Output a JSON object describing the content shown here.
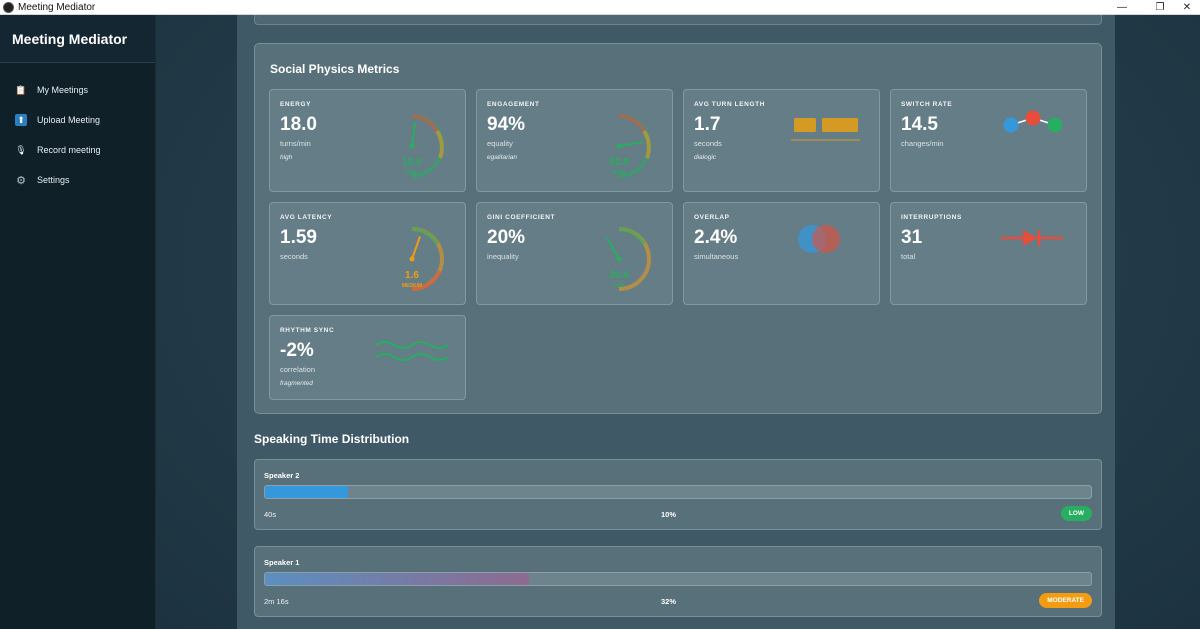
{
  "window": {
    "title": "Meeting Mediator",
    "controls": {
      "minimize": "—",
      "restore": "❐",
      "close": "✕"
    }
  },
  "sidebar": {
    "brand": "Meeting Mediator",
    "items": [
      {
        "label": "My Meetings",
        "icon": "clipboard-icon",
        "glyph": "📋"
      },
      {
        "label": "Upload Meeting",
        "icon": "upload-icon",
        "glyph": "⬆"
      },
      {
        "label": "Record meeting",
        "icon": "microphone-icon",
        "glyph": "🎙"
      },
      {
        "label": "Settings",
        "icon": "gear-icon",
        "glyph": "⚙"
      }
    ]
  },
  "metrics": {
    "title": "Social Physics Metrics",
    "energy": {
      "label": "ENERGY",
      "value": "18.0",
      "unit": "turns/min",
      "desc": "high",
      "gauge_value": "18.0",
      "gauge_level": "HIGH",
      "fraction": 0.45
    },
    "engagement": {
      "label": "ENGAGEMENT",
      "value": "94%",
      "unit": "equality",
      "desc": "egalitarian",
      "gauge_value": "93.9",
      "gauge_level": "HIGH",
      "fraction": 0.94
    },
    "avg_turn_length": {
      "label": "AVG TURN LENGTH",
      "value": "1.7",
      "unit": "seconds",
      "desc": "dialogic"
    },
    "switch_rate": {
      "label": "SWITCH RATE",
      "value": "14.5",
      "unit": "changes/min"
    },
    "avg_latency": {
      "label": "AVG LATENCY",
      "value": "1.59",
      "unit": "seconds",
      "gauge_value": "1.6",
      "gauge_level": "MEDIUM",
      "fraction": 0.53
    },
    "gini": {
      "label": "GINI COEFFICIENT",
      "value": "20%",
      "unit": "inequality",
      "gauge_value": "20.0",
      "gauge_level": "LOW",
      "fraction": 0.2
    },
    "overlap": {
      "label": "OVERLAP",
      "value": "2.4%",
      "unit": "simultaneous"
    },
    "interruptions": {
      "label": "INTERRUPTIONS",
      "value": "31",
      "unit": "total"
    },
    "rhythm_sync": {
      "label": "RHYTHM SYNC",
      "value": "-2%",
      "unit": "correlation",
      "desc": "fragmented"
    }
  },
  "speaking": {
    "title": "Speaking Time Distribution",
    "speakers": [
      {
        "name": "Speaker 2",
        "time": "40s",
        "percent_label": "10%",
        "fraction": 0.1,
        "badge": "LOW",
        "badge_color": "#27ae60"
      },
      {
        "name": "Speaker 1",
        "time": "2m 16s",
        "percent_label": "32%",
        "fraction": 0.32,
        "badge": "MODERATE",
        "badge_color": "#f39c12"
      }
    ]
  },
  "colors": {
    "green": "#27ae60",
    "orange": "#f39c12",
    "gold": "#d49a24",
    "red": "#e74c3c",
    "blue": "#3498db",
    "purple": "#8e44ad"
  }
}
